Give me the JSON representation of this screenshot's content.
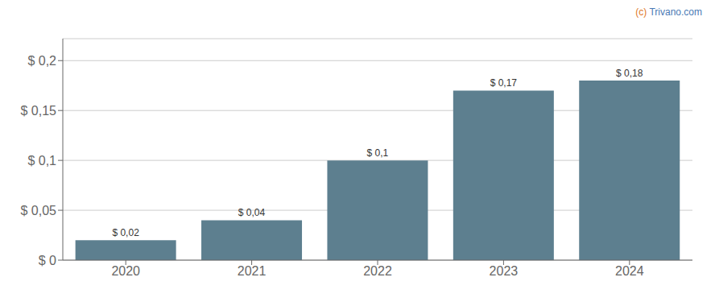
{
  "chart_data": {
    "type": "bar",
    "categories": [
      "2020",
      "2021",
      "2022",
      "2023",
      "2024"
    ],
    "values": [
      0.02,
      0.04,
      0.1,
      0.17,
      0.18
    ],
    "value_labels": [
      "$ 0,02",
      "$ 0,04",
      "$ 0,1",
      "$ 0,17",
      "$ 0,18"
    ],
    "data_labels": true,
    "color": "#5d7f8f",
    "ylim": [
      0,
      0.222
    ],
    "yticks": [
      {
        "value": 0,
        "label": "$ 0"
      },
      {
        "value": 0.05,
        "label": "$ 0,05"
      },
      {
        "value": 0.1,
        "label": "$ 0,1"
      },
      {
        "value": 0.15,
        "label": "$ 0,15"
      },
      {
        "value": 0.2,
        "label": "$ 0,2"
      }
    ],
    "grid": true,
    "annotations": [
      {
        "text": "(c) ",
        "color": "#e07828"
      },
      {
        "text": "Trivano.com",
        "color": "#4a7ab5"
      }
    ]
  }
}
